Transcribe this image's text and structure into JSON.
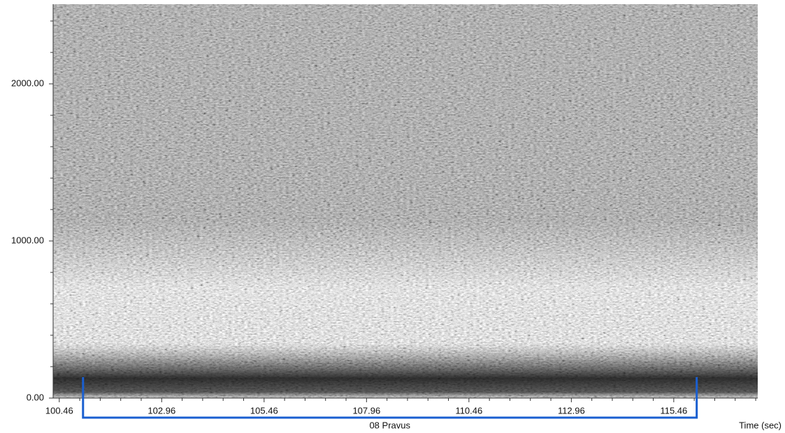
{
  "chart_data": {
    "type": "spectrogram",
    "xlabel": "Time (sec)",
    "xlim": [
      100.31,
      117.51
    ],
    "xticks": [
      100.46,
      102.96,
      105.46,
      107.96,
      110.46,
      112.96,
      115.46
    ],
    "xminorticks": [
      100.96,
      101.46,
      101.96,
      102.46,
      103.46,
      103.96,
      104.46,
      104.96,
      105.96,
      106.46,
      106.96,
      107.46,
      108.46,
      108.96,
      109.46,
      109.96,
      110.96,
      111.46,
      111.96,
      112.46,
      113.46,
      113.96,
      114.46,
      114.96,
      115.96,
      116.46,
      116.96,
      117.46
    ],
    "ylim": [
      0,
      2507
    ],
    "yticks": [
      {
        "value": 0,
        "label": "0.00"
      },
      {
        "value": 1000,
        "label": "1000.00"
      },
      {
        "value": 2000,
        "label": "2000.00"
      }
    ],
    "yminorticks": [
      200,
      400,
      600,
      800,
      1200,
      1400,
      1600,
      1800,
      2200,
      2400
    ],
    "region": {
      "label": "08 Pravus",
      "start": 101.04,
      "end": 116.02,
      "color": "#1a5fd0"
    }
  }
}
